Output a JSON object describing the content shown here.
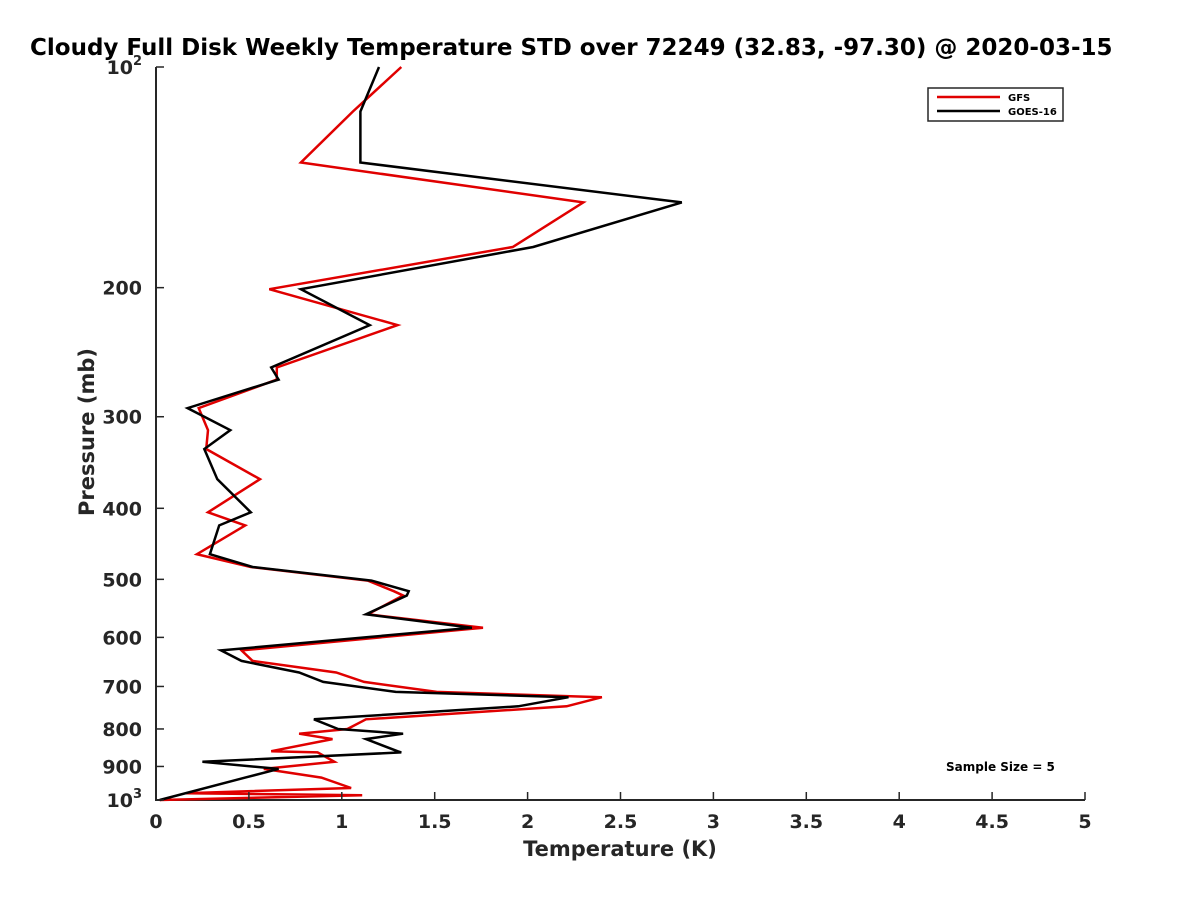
{
  "chart_data": {
    "type": "line",
    "title": "Cloudy Full Disk Weekly Temperature STD over 72249 (32.83, -97.30) @ 2020-03-15",
    "xlabel": "Temperature (K)",
    "ylabel": "Pressure (mb)",
    "xlim": [
      0,
      5
    ],
    "ylim": [
      100,
      1000
    ],
    "yscale": "log",
    "yreversed": true,
    "xticks": [
      "0",
      "0.5",
      "1",
      "1.5",
      "2",
      "2.5",
      "3",
      "3.5",
      "4",
      "4.5",
      "5"
    ],
    "xtick_values": [
      0,
      0.5,
      1,
      1.5,
      2,
      2.5,
      3,
      3.5,
      4,
      4.5,
      5
    ],
    "yticks": [
      {
        "value": 100,
        "base": "10",
        "exp": "2"
      },
      {
        "value": 200,
        "label": "200"
      },
      {
        "value": 300,
        "label": "300"
      },
      {
        "value": 400,
        "label": "400"
      },
      {
        "value": 500,
        "label": "500"
      },
      {
        "value": 600,
        "label": "600"
      },
      {
        "value": 700,
        "label": "700"
      },
      {
        "value": 800,
        "label": "800"
      },
      {
        "value": 900,
        "label": "900"
      },
      {
        "value": 1000,
        "base": "10",
        "exp": "3"
      }
    ],
    "grid": false,
    "legend_position": "top-right",
    "annotation": "Sample Size = 5",
    "series": [
      {
        "name": "GFS",
        "color": "#e00000",
        "points": [
          [
            1.32,
            100
          ],
          [
            1.06,
            115
          ],
          [
            0.78,
            135
          ],
          [
            2.3,
            153
          ],
          [
            1.92,
            176
          ],
          [
            0.61,
            201
          ],
          [
            1.3,
            225
          ],
          [
            0.65,
            257
          ],
          [
            0.65,
            267
          ],
          [
            0.23,
            292
          ],
          [
            0.28,
            313
          ],
          [
            0.27,
            332
          ],
          [
            0.56,
            365
          ],
          [
            0.28,
            405
          ],
          [
            0.48,
            422
          ],
          [
            0.22,
            462
          ],
          [
            0.51,
            481
          ],
          [
            1.14,
            502
          ],
          [
            1.28,
            519
          ],
          [
            1.33,
            526
          ],
          [
            1.14,
            558
          ],
          [
            1.76,
            582
          ],
          [
            0.46,
            625
          ],
          [
            0.52,
            646
          ],
          [
            0.97,
            670
          ],
          [
            1.12,
            690
          ],
          [
            1.51,
            712
          ],
          [
            2.4,
            724
          ],
          [
            2.21,
            745
          ],
          [
            1.13,
            776
          ],
          [
            1.03,
            800
          ],
          [
            0.77,
            812
          ],
          [
            0.95,
            826
          ],
          [
            0.62,
            858
          ],
          [
            0.87,
            861
          ],
          [
            0.96,
            887
          ],
          [
            0.58,
            907
          ],
          [
            0.89,
            932
          ],
          [
            1.05,
            963
          ],
          [
            0.16,
            979
          ],
          [
            1.11,
            985
          ],
          [
            0.02,
            1000
          ]
        ]
      },
      {
        "name": "GOES-16",
        "color": "#000000",
        "points": [
          [
            1.2,
            100
          ],
          [
            1.1,
            115
          ],
          [
            1.1,
            135
          ],
          [
            2.83,
            153
          ],
          [
            2.03,
            176
          ],
          [
            0.78,
            201
          ],
          [
            1.15,
            225
          ],
          [
            0.62,
            257
          ],
          [
            0.66,
            267
          ],
          [
            0.17,
            292
          ],
          [
            0.4,
            313
          ],
          [
            0.26,
            332
          ],
          [
            0.33,
            365
          ],
          [
            0.51,
            405
          ],
          [
            0.34,
            422
          ],
          [
            0.29,
            462
          ],
          [
            0.52,
            481
          ],
          [
            1.16,
            502
          ],
          [
            1.36,
            519
          ],
          [
            1.35,
            526
          ],
          [
            1.13,
            558
          ],
          [
            1.7,
            582
          ],
          [
            0.35,
            625
          ],
          [
            0.46,
            646
          ],
          [
            0.77,
            670
          ],
          [
            0.9,
            690
          ],
          [
            1.29,
            712
          ],
          [
            2.22,
            724
          ],
          [
            1.95,
            745
          ],
          [
            0.85,
            776
          ],
          [
            0.98,
            800
          ],
          [
            1.33,
            812
          ],
          [
            1.13,
            826
          ],
          [
            1.3,
            858
          ],
          [
            1.32,
            861
          ],
          [
            0.25,
            887
          ],
          [
            0.66,
            907
          ],
          [
            0.48,
            932
          ],
          [
            0.02,
            1000
          ]
        ]
      }
    ]
  }
}
